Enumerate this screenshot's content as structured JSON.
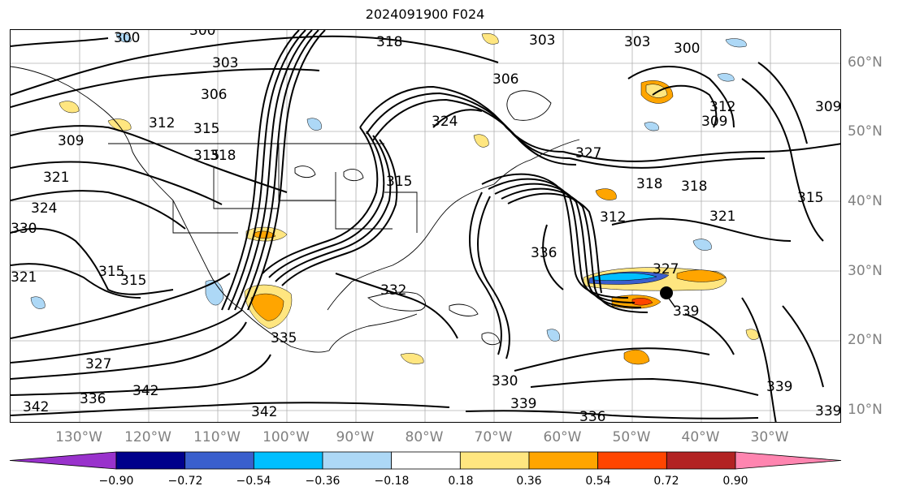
{
  "title": "2024091900 F024",
  "lon_labels": [
    "130°W",
    "120°W",
    "110°W",
    "100°W",
    "90°W",
    "80°W",
    "70°W",
    "60°W",
    "50°W",
    "40°W",
    "30°W"
  ],
  "lat_labels": [
    "60°N",
    "50°N",
    "40°N",
    "30°N",
    "20°N",
    "10°N"
  ],
  "colorbar": {
    "ticks": [
      "−0.90",
      "−0.72",
      "−0.54",
      "−0.36",
      "−0.18",
      "0.18",
      "0.36",
      "0.54",
      "0.72",
      "0.90"
    ],
    "colors": [
      "#9932CC",
      "#00008B",
      "#3A5FCD",
      "#00BFFF",
      "#ADD8F6",
      "#FFFFFF",
      "#FFE680",
      "#FFA500",
      "#FF4500",
      "#B22222",
      "#FF85B0"
    ]
  },
  "contour_labels": [
    "300",
    "300",
    "303",
    "318",
    "303",
    "306",
    "303",
    "300",
    "312",
    "309",
    "309",
    "306",
    "315",
    "312",
    "315",
    "318",
    "309",
    "321",
    "324",
    "330",
    "315",
    "315",
    "327",
    "321",
    "318",
    "318",
    "312",
    "321",
    "315",
    "336",
    "327",
    "332",
    "315",
    "324",
    "335",
    "339",
    "330",
    "327",
    "336",
    "342",
    "342",
    "342",
    "339",
    "336",
    "339",
    "339"
  ],
  "colors": {
    "contour": "#000000",
    "border": "#000000",
    "grid": "#b0b0b0",
    "axis_labels": "#808080"
  }
}
